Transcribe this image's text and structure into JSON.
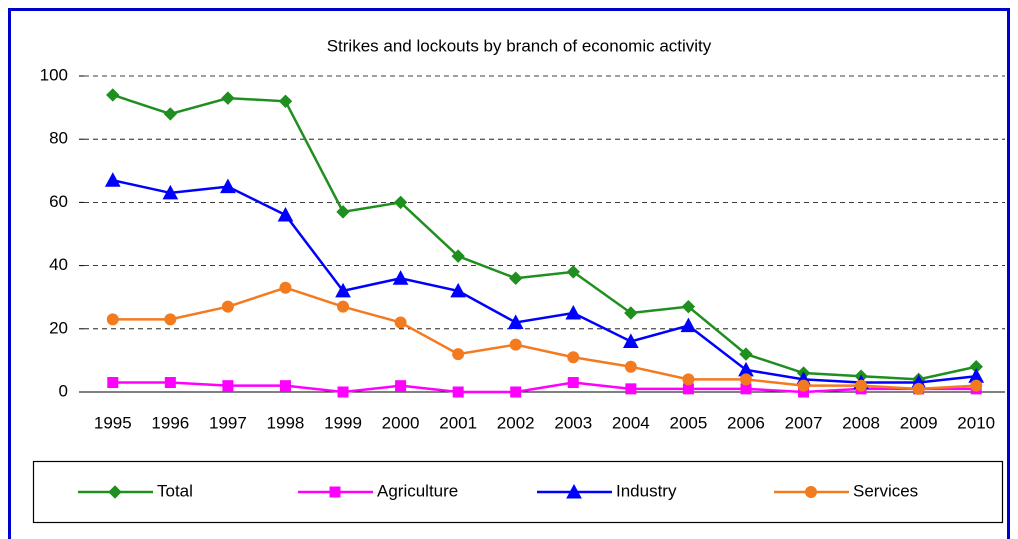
{
  "chart_data": {
    "type": "line",
    "title": "Strikes and lockouts by branch of economic activity",
    "categories": [
      "1995",
      "1996",
      "1997",
      "1998",
      "1999",
      "2000",
      "2001",
      "2002",
      "2003",
      "2004",
      "2005",
      "2006",
      "2007",
      "2008",
      "2009",
      "2010"
    ],
    "series": [
      {
        "name": "Total",
        "color": "#1f8f1f",
        "marker": "diamond",
        "values": [
          94,
          88,
          93,
          92,
          57,
          60,
          43,
          36,
          38,
          25,
          27,
          12,
          6,
          5,
          4,
          8
        ]
      },
      {
        "name": "Agriculture",
        "color": "#ff00ff",
        "marker": "square",
        "values": [
          3,
          3,
          2,
          2,
          0,
          2,
          0,
          0,
          3,
          1,
          1,
          1,
          0,
          1,
          1,
          1
        ]
      },
      {
        "name": "Industry",
        "color": "#0000ff",
        "marker": "triangle",
        "values": [
          67,
          63,
          65,
          56,
          32,
          36,
          32,
          22,
          25,
          16,
          21,
          7,
          4,
          3,
          3,
          5
        ]
      },
      {
        "name": "Services",
        "color": "#f47a20",
        "marker": "circle",
        "values": [
          23,
          23,
          27,
          33,
          27,
          22,
          12,
          15,
          11,
          8,
          4,
          4,
          2,
          2,
          1,
          2
        ]
      }
    ],
    "ylim": [
      0,
      100
    ],
    "yticks": [
      0,
      20,
      40,
      60,
      80,
      100
    ],
    "grid": true,
    "legend": "bottom"
  }
}
